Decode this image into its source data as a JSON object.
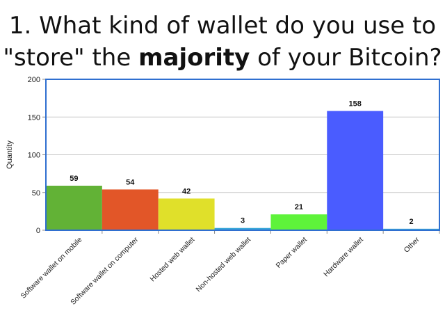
{
  "title": {
    "line1": "1. What kind of wallet do you use to",
    "line2_pre": "\"store\" the ",
    "line2_bold": "majority",
    "line2_post": " of your Bitcoin?"
  },
  "chart_data": {
    "type": "bar",
    "categories": [
      "Software wallet on mobile",
      "Software wallet on computer",
      "Hosted web wallet",
      "Non-hosted web wallet",
      "Paper wallet",
      "Hardware wallet",
      "Other"
    ],
    "values": [
      59,
      54,
      42,
      3,
      21,
      158,
      2
    ],
    "colors": [
      "#62b236",
      "#e25628",
      "#e0e02a",
      "#3aa7d9",
      "#5ef33a",
      "#4a5cff",
      "#3aa7d9"
    ],
    "xlabel": "",
    "ylabel": "Quantity",
    "ylim": [
      0,
      200
    ],
    "yticks": [
      0,
      50,
      100,
      150,
      200
    ],
    "grid": true,
    "frame_color": "#2f6fd0"
  }
}
